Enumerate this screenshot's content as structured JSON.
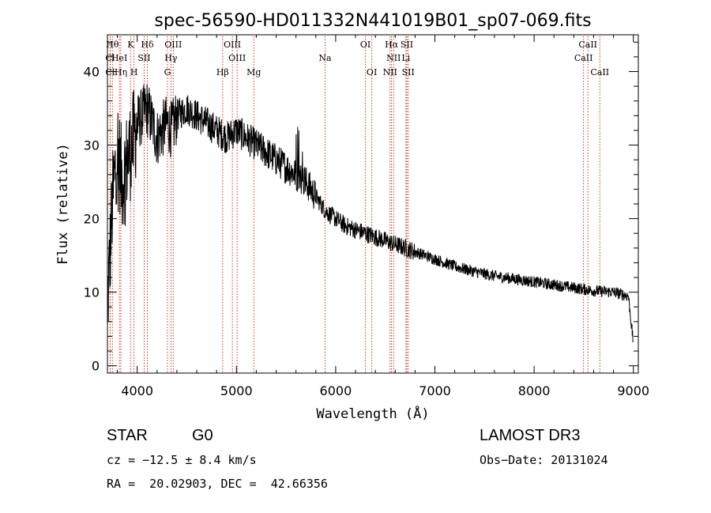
{
  "chart_data": {
    "type": "line",
    "title": "spec-56590-HD011332N441019B01_sp07-069.fits",
    "xlabel": "Wavelength (Å)",
    "ylabel": "Flux (relative)",
    "xlim": [
      3700,
      9050
    ],
    "ylim": [
      -1,
      45
    ],
    "xticks": [
      4000,
      5000,
      6000,
      7000,
      8000,
      9000
    ],
    "yticks": [
      0,
      10,
      20,
      30,
      40
    ],
    "xtick_labels": [
      "4000",
      "5000",
      "6000",
      "7000",
      "8000",
      "9000"
    ],
    "ytick_labels": [
      "0",
      "10",
      "20",
      "30",
      "40"
    ],
    "line_color": "#000000",
    "marker_color": "#cc2200",
    "spectrum_envelope": {
      "x": [
        3700,
        3750,
        3800,
        3850,
        3900,
        3950,
        4000,
        4050,
        4100,
        4150,
        4200,
        4250,
        4300,
        4350,
        4400,
        4500,
        4600,
        4700,
        4800,
        4900,
        5000,
        5100,
        5200,
        5300,
        5400,
        5500,
        5600,
        5700,
        5800,
        5900,
        6000,
        6100,
        6200,
        6300,
        6400,
        6500,
        6600,
        6700,
        6800,
        7000,
        7200,
        7400,
        7600,
        7800,
        8000,
        8200,
        8400,
        8600,
        8800,
        8950,
        9000
      ],
      "y": [
        8,
        22,
        30,
        25,
        28,
        30,
        33,
        34,
        35,
        33,
        31,
        32,
        33,
        32,
        34,
        35,
        34,
        33,
        32,
        31,
        32,
        31,
        30,
        29,
        28,
        27,
        26,
        25,
        23,
        21,
        20,
        19,
        18.5,
        18,
        17.5,
        17,
        16.5,
        16,
        15.5,
        14.5,
        13.5,
        12.8,
        12.2,
        11.8,
        11.4,
        11,
        10.6,
        10.2,
        10,
        9.5,
        3
      ]
    },
    "spectral_lines": [
      {
        "label": "Hθ",
        "x": 3750,
        "row": 0
      },
      {
        "label": "K",
        "x": 3934,
        "row": 0
      },
      {
        "label": "Hδ",
        "x": 4102,
        "row": 0
      },
      {
        "label": "OIII",
        "x": 4363,
        "row": 0
      },
      {
        "label": "OIII",
        "x": 4959,
        "row": 0
      },
      {
        "label": "OI",
        "x": 6300,
        "row": 0
      },
      {
        "label": "Hα",
        "x": 6563,
        "row": 0
      },
      {
        "label": "SII",
        "x": 6717,
        "row": 0
      },
      {
        "label": "CaII",
        "x": 8542,
        "row": 0
      },
      {
        "label": "Cl",
        "x": 3727,
        "row": 1
      },
      {
        "label": "HeI",
        "x": 3820,
        "row": 1
      },
      {
        "label": "SII",
        "x": 4070,
        "row": 1
      },
      {
        "label": "Hγ",
        "x": 4340,
        "row": 1
      },
      {
        "label": "OIII",
        "x": 5007,
        "row": 1
      },
      {
        "label": "Na",
        "x": 5893,
        "row": 1
      },
      {
        "label": "NII",
        "x": 6584,
        "row": 1
      },
      {
        "label": "Li",
        "x": 6708,
        "row": 1
      },
      {
        "label": "CaII",
        "x": 8498,
        "row": 1
      },
      {
        "label": "Cl",
        "x": 3727,
        "row": 2
      },
      {
        "label": "Hη",
        "x": 3835,
        "row": 2
      },
      {
        "label": "H",
        "x": 3968,
        "row": 2
      },
      {
        "label": "G",
        "x": 4305,
        "row": 2
      },
      {
        "label": "Hβ",
        "x": 4861,
        "row": 2
      },
      {
        "label": "Mg",
        "x": 5175,
        "row": 2
      },
      {
        "label": "OI",
        "x": 6364,
        "row": 2
      },
      {
        "label": "NII",
        "x": 6548,
        "row": 2
      },
      {
        "label": "SII",
        "x": 6731,
        "row": 2
      },
      {
        "label": "CaII",
        "x": 8662,
        "row": 2
      }
    ]
  },
  "footer": {
    "object_type": "STAR",
    "subclass": "G0",
    "survey": "LAMOST DR3",
    "cz": "cz = −12.5 ± 8.4 km/s",
    "obs_date": "Obs−Date: 20131024",
    "coords": "RA =  20.02903, DEC =  42.66356"
  }
}
